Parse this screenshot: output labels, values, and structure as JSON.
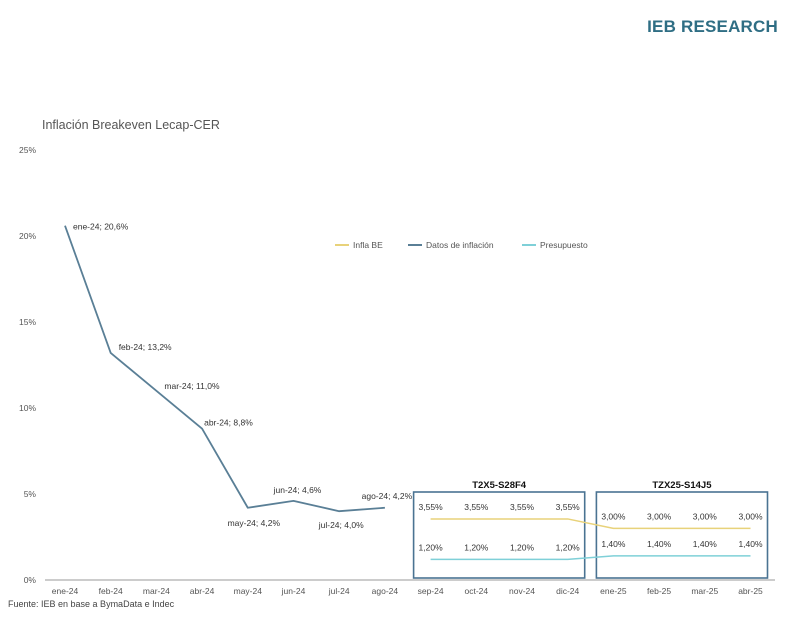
{
  "brand": "IEB RESEARCH",
  "source": "Fuente: IEB en base a BymaData e Indec",
  "colors": {
    "infla_be": "#e8d27a",
    "datos": "#5a7f96",
    "presupuesto": "#7fd0d8",
    "box": "#4a7392",
    "axis": "#999999"
  },
  "chart_data": {
    "type": "line",
    "title": "Inflación Breakeven Lecap-CER",
    "categories": [
      "ene-24",
      "feb-24",
      "mar-24",
      "abr-24",
      "may-24",
      "jun-24",
      "jul-24",
      "ago-24",
      "sep-24",
      "oct-24",
      "nov-24",
      "dic-24",
      "ene-25",
      "feb-25",
      "mar-25",
      "abr-25"
    ],
    "y_ticks": [
      "0%",
      "5%",
      "10%",
      "15%",
      "20%",
      "25%"
    ],
    "ylim": [
      0,
      25
    ],
    "legend_position": "top-right",
    "series": [
      {
        "name": "Infla BE",
        "color": "#e8d27a",
        "values": [
          null,
          null,
          null,
          null,
          null,
          null,
          null,
          null,
          3.55,
          3.55,
          3.55,
          3.55,
          3.0,
          3.0,
          3.0,
          3.0
        ],
        "labels": [
          null,
          null,
          null,
          null,
          null,
          null,
          null,
          null,
          "3,55%",
          "3,55%",
          "3,55%",
          "3,55%",
          "3,00%",
          "3,00%",
          "3,00%",
          "3,00%"
        ]
      },
      {
        "name": "Datos de inflación",
        "color": "#5a7f96",
        "values": [
          20.6,
          13.2,
          11.0,
          8.8,
          4.2,
          4.6,
          4.0,
          4.2,
          null,
          null,
          null,
          null,
          null,
          null,
          null,
          null
        ],
        "labels": [
          "ene-24; 20,6%",
          "feb-24; 13,2%",
          "mar-24; 11,0%",
          "abr-24; 8,8%",
          "may-24; 4,2%",
          "jun-24; 4,6%",
          "jul-24; 4,0%",
          "ago-24; 4,2%",
          null,
          null,
          null,
          null,
          null,
          null,
          null,
          null
        ]
      },
      {
        "name": "Presupuesto",
        "color": "#7fd0d8",
        "values": [
          null,
          null,
          null,
          null,
          null,
          null,
          null,
          null,
          1.2,
          1.2,
          1.2,
          1.2,
          1.4,
          1.4,
          1.4,
          1.4
        ],
        "labels": [
          null,
          null,
          null,
          null,
          null,
          null,
          null,
          null,
          "1,20%",
          "1,20%",
          "1,20%",
          "1,20%",
          "1,40%",
          "1,40%",
          "1,40%",
          "1,40%"
        ]
      }
    ],
    "boxes": [
      {
        "title": "T2X5-S28F4",
        "from": 8,
        "to": 11
      },
      {
        "title": "TZX25-S14J5",
        "from": 12,
        "to": 15
      }
    ]
  }
}
